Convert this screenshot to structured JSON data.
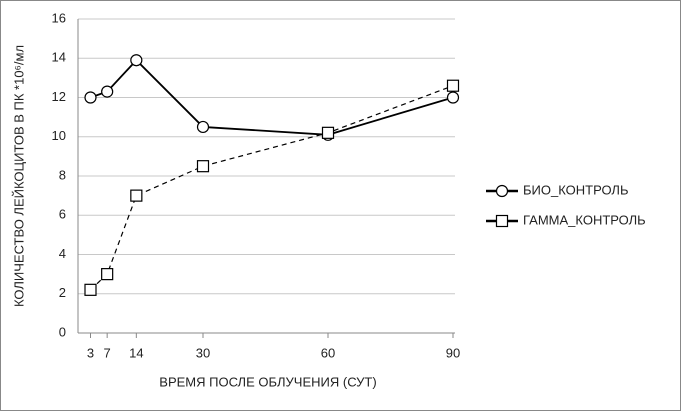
{
  "chart_data": {
    "type": "line",
    "ylabel": "КОЛИЧЕСТВО ЛЕЙКОЦИТОВ В ПК *10⁶/мл",
    "xlabel": "ВРЕМЯ ПОСЛЕ ОБЛУЧЕНИЯ (СУТ)",
    "x": [
      3,
      7,
      14,
      30,
      60,
      90
    ],
    "xlim": [
      0,
      90
    ],
    "xticks": [
      3,
      7,
      14,
      30,
      60,
      90
    ],
    "ylim": [
      0,
      16
    ],
    "yticks": [
      0,
      2,
      4,
      6,
      8,
      10,
      12,
      14,
      16
    ],
    "grid": true,
    "legend": "right",
    "series": [
      {
        "name": "БИО_КОНТРОЛЬ",
        "color": "#000000",
        "dash": false,
        "marker": "circle",
        "values": [
          12.0,
          12.3,
          13.9,
          10.5,
          10.1,
          12.0
        ]
      },
      {
        "name": "ГАММА_КОНТРОЛЬ",
        "color": "#000000",
        "dash": true,
        "marker": "square",
        "values": [
          2.2,
          3.0,
          7.0,
          8.5,
          10.2,
          12.6
        ]
      }
    ]
  }
}
